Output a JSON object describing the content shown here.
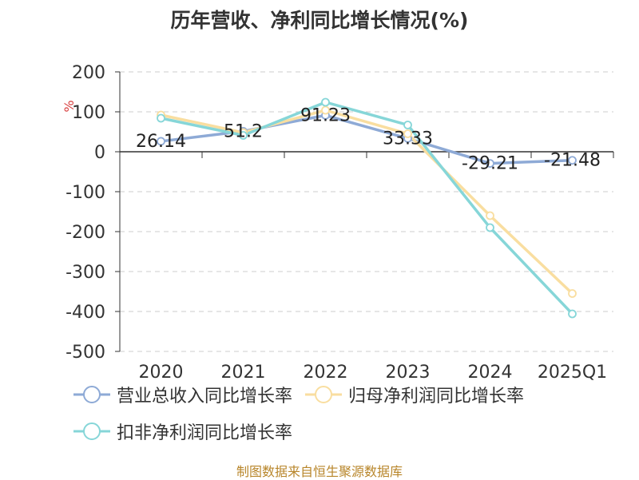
{
  "chart_data": {
    "type": "line",
    "title": "历年营收、净利同比增长情况(%)",
    "ylabel": "%",
    "categories": [
      "2020",
      "2021",
      "2022",
      "2023",
      "2024",
      "2025Q1"
    ],
    "ylim": [
      -500,
      200
    ],
    "yticks": [
      200,
      100,
      0,
      -100,
      -200,
      -300,
      -400,
      -500
    ],
    "grid": true,
    "legend_position": "bottom",
    "series": [
      {
        "name": "营业总收入同比增长率",
        "color": "#8eaad6",
        "values": [
          26.14,
          51.2,
          91.23,
          33.33,
          -29.21,
          -21.48
        ],
        "labels": [
          "26.14",
          "51.2",
          "91.23",
          "33.33",
          "-29.21",
          "-21.48"
        ]
      },
      {
        "name": "归母净利润同比增长率",
        "color": "#f9dea0",
        "values": [
          92,
          48,
          104,
          45,
          -160,
          -355
        ]
      },
      {
        "name": "扣非净利润同比增长率",
        "color": "#86d6d8",
        "values": [
          84,
          41,
          124,
          67,
          -190,
          -406
        ]
      }
    ]
  },
  "footer": {
    "source": "制图数据来自恒生聚源数据库"
  }
}
